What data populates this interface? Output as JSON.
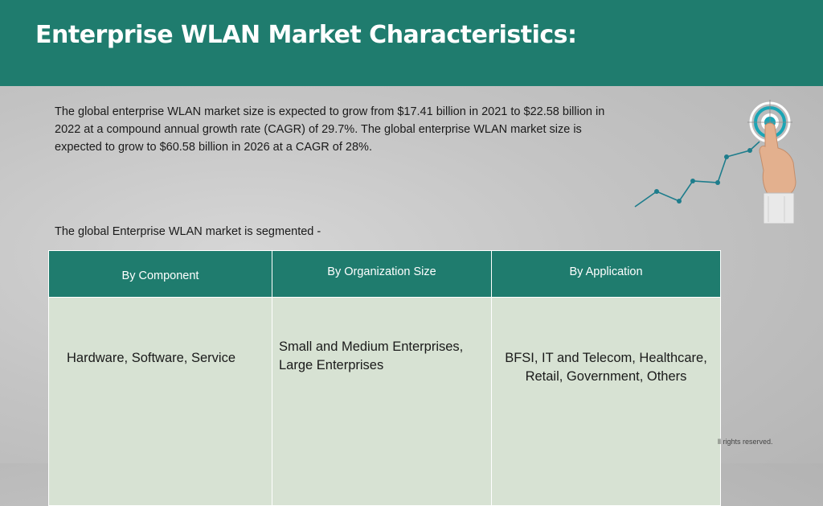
{
  "header": {
    "title": "Enterprise WLAN Market Characteristics:"
  },
  "intro_text": "The global enterprise WLAN market size is expected to grow from $17.41 billion in 2021 to $22.58 billion in 2022 at a compound annual growth rate (CAGR) of 29.7%. The global enterprise WLAN market size is expected to grow to $60.58 billion in 2026 at a CAGR of 28%.",
  "segment_label": "The global Enterprise WLAN market is segmented -",
  "segments": {
    "headers": [
      "By Component",
      "By Organization Size",
      "By Application"
    ],
    "values": [
      "Hardware, Software, Service",
      "Small and Medium Enterprises, Large Enterprises",
      "BFSI, IT and Telecom, Healthcare, Retail, Government, Others"
    ]
  },
  "footer": {
    "text": "ll rights reserved."
  },
  "colors": {
    "accent": "#1f7c6e",
    "cell_background": "#d7e2d3",
    "target_ring": "#1aa5b5"
  },
  "icons": {
    "illustration": "growth-chart-with-hand-touching-target-icon"
  }
}
